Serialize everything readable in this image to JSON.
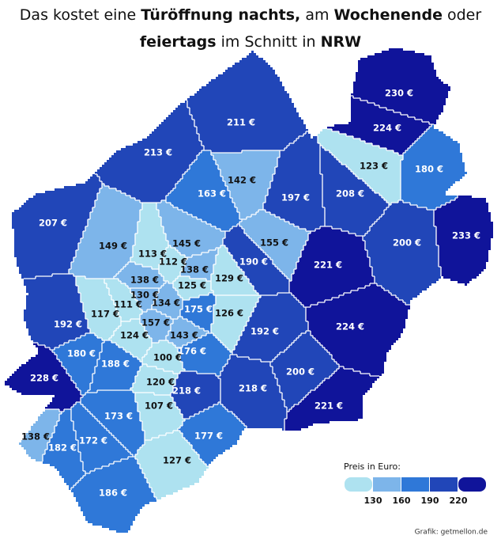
{
  "title": {
    "lines": [
      [
        {
          "text": "Das kostet eine ",
          "bold": false
        },
        {
          "text": "Türöffnung nachts,",
          "bold": true
        },
        {
          "text": " am ",
          "bold": false
        },
        {
          "text": "Wochenende",
          "bold": true
        },
        {
          "text": " oder",
          "bold": false
        }
      ],
      [
        {
          "text": "feiertags",
          "bold": true
        },
        {
          "text": " im Schnitt in ",
          "bold": false
        },
        {
          "text": "NRW",
          "bold": true
        }
      ]
    ]
  },
  "regions": [
    {
      "value": 230,
      "value_label": "230 €"
    },
    {
      "value": 224,
      "value_label": "224 €"
    },
    {
      "value": 123,
      "value_label": "123 €"
    },
    {
      "value": 180,
      "value_label": "180 €"
    },
    {
      "value": 211,
      "value_label": "211 €"
    },
    {
      "value": 213,
      "value_label": "213 €"
    },
    {
      "value": 142,
      "value_label": "142 €"
    },
    {
      "value": 163,
      "value_label": "163 €"
    },
    {
      "value": 197,
      "value_label": "197 €"
    },
    {
      "value": 208,
      "value_label": "208 €"
    },
    {
      "value": 207,
      "value_label": "207 €"
    },
    {
      "value": 149,
      "value_label": "149 €"
    },
    {
      "value": 145,
      "value_label": "145 €"
    },
    {
      "value": 155,
      "value_label": "155 €"
    },
    {
      "value": 200,
      "value_label": "200 €"
    },
    {
      "value": 233,
      "value_label": "233 €"
    },
    {
      "value": 113,
      "value_label": "113 €"
    },
    {
      "value": 112,
      "value_label": "112 €"
    },
    {
      "value": 138,
      "value_label": "138 €"
    },
    {
      "value": 190,
      "value_label": "190 €"
    },
    {
      "value": 221,
      "value_label": "221 €"
    },
    {
      "value": 138,
      "value_label": "138 €"
    },
    {
      "value": 129,
      "value_label": "129 €"
    },
    {
      "value": 125,
      "value_label": "125 €"
    },
    {
      "value": 130,
      "value_label": "130 €"
    },
    {
      "value": 134,
      "value_label": "134 €"
    },
    {
      "value": 111,
      "value_label": "111 €"
    },
    {
      "value": 117,
      "value_label": "117 €"
    },
    {
      "value": 175,
      "value_label": "175 €"
    },
    {
      "value": 126,
      "value_label": "126 €"
    },
    {
      "value": 192,
      "value_label": "192 €"
    },
    {
      "value": 157,
      "value_label": "157 €"
    },
    {
      "value": 124,
      "value_label": "124 €"
    },
    {
      "value": 143,
      "value_label": "143 €"
    },
    {
      "value": 192,
      "value_label": "192 €"
    },
    {
      "value": 224,
      "value_label": "224 €"
    },
    {
      "value": 180,
      "value_label": "180 €"
    },
    {
      "value": 176,
      "value_label": "176 €"
    },
    {
      "value": 100,
      "value_label": "100 €"
    },
    {
      "value": 188,
      "value_label": "188 €"
    },
    {
      "value": 200,
      "value_label": "200 €"
    },
    {
      "value": 228,
      "value_label": "228 €"
    },
    {
      "value": 120,
      "value_label": "120 €"
    },
    {
      "value": 218,
      "value_label": "218 €"
    },
    {
      "value": 218,
      "value_label": "218 €"
    },
    {
      "value": 221,
      "value_label": "221 €"
    },
    {
      "value": 107,
      "value_label": "107 €"
    },
    {
      "value": 173,
      "value_label": "173 €"
    },
    {
      "value": 177,
      "value_label": "177 €"
    },
    {
      "value": 138,
      "value_label": "138 €"
    },
    {
      "value": 182,
      "value_label": "182 €"
    },
    {
      "value": 172,
      "value_label": "172 €"
    },
    {
      "value": 127,
      "value_label": "127 €"
    },
    {
      "value": 186,
      "value_label": "186 €"
    }
  ],
  "legend": {
    "title": "Preis in Euro:",
    "ticks": [
      130,
      160,
      190,
      220
    ],
    "colors": [
      "#aee2f0",
      "#7db5ea",
      "#2f78d8",
      "#2146b8",
      "#10149a"
    ]
  },
  "source": "Grafik: getmellon.de"
}
